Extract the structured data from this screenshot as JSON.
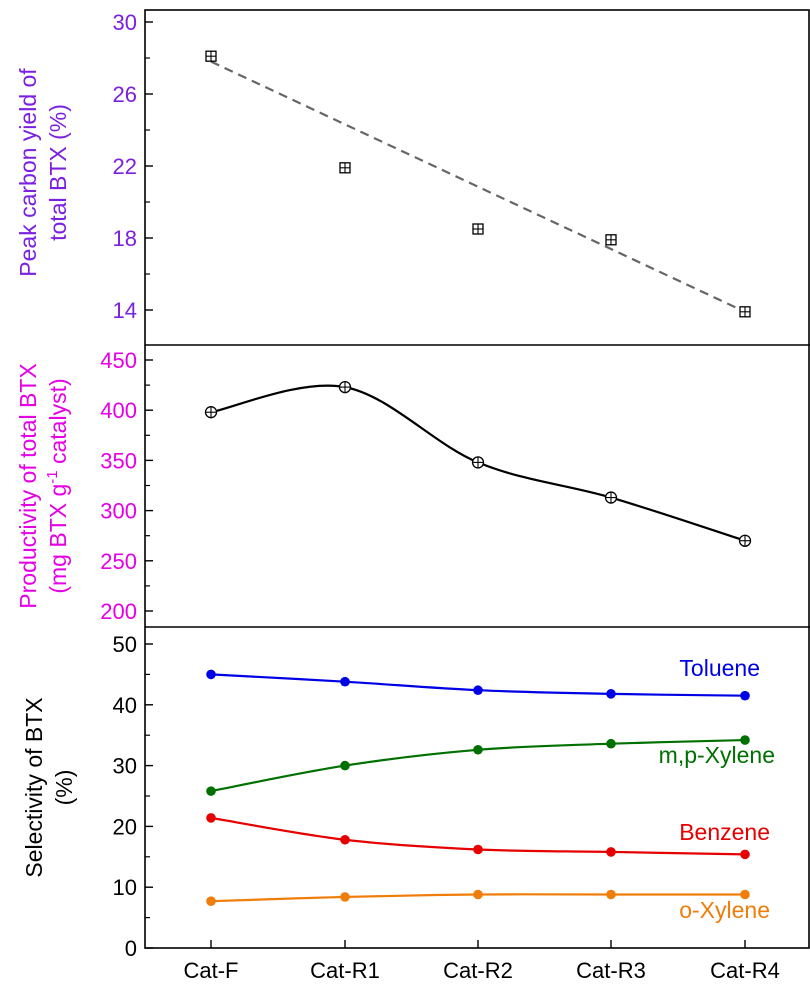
{
  "chart_data": [
    {
      "type": "scatter",
      "panel": "top",
      "ylabel_lines": [
        "Peak carbon yield of",
        "total BTX (%)"
      ],
      "ylabel_color": "#7b1fe0",
      "ylim": [
        12,
        30
      ],
      "yticks": [
        "14",
        "18",
        "22",
        "26",
        "30"
      ],
      "categories": [
        "Cat-F",
        "Cat-R1",
        "Cat-R2",
        "Cat-R3",
        "Cat-R4"
      ],
      "series": [
        {
          "values": [
            28.1,
            21.9,
            18.5,
            17.9,
            13.9
          ],
          "marker": "square-plus",
          "color": "#000000"
        }
      ],
      "trendline": {
        "from": 27.8,
        "to": 13.9,
        "style": "dashed",
        "color": "#666666"
      }
    },
    {
      "type": "line",
      "panel": "middle",
      "ylabel_lines": [
        "Productivity of total BTX",
        "(mg BTX g-1 catalyst)"
      ],
      "ylabel_color": "#e600e6",
      "ylim": [
        180,
        465
      ],
      "yticks": [
        "200",
        "250",
        "300",
        "350",
        "400",
        "450"
      ],
      "categories": [
        "Cat-F",
        "Cat-R1",
        "Cat-R2",
        "Cat-R3",
        "Cat-R4"
      ],
      "series": [
        {
          "values": [
            398,
            423,
            348,
            313,
            270
          ],
          "marker": "circle-plus",
          "color": "#000000"
        }
      ]
    },
    {
      "type": "line",
      "panel": "bottom",
      "ylabel_lines": [
        "Selectivity of BTX",
        "(%)"
      ],
      "ylabel_color": "#000000",
      "ylim": [
        0,
        52
      ],
      "yticks": [
        "0",
        "10",
        "20",
        "30",
        "40",
        "50"
      ],
      "categories": [
        "Cat-F",
        "Cat-R1",
        "Cat-R2",
        "Cat-R3",
        "Cat-R4"
      ],
      "series": [
        {
          "name": "Toluene",
          "values": [
            45.0,
            43.8,
            42.4,
            41.8,
            41.5
          ],
          "color": "#0000e6"
        },
        {
          "name": "m,p-Xylene",
          "values": [
            25.8,
            30.0,
            32.6,
            33.6,
            34.2
          ],
          "color": "#007000"
        },
        {
          "name": "Benzene",
          "values": [
            21.4,
            17.8,
            16.2,
            15.8,
            15.4
          ],
          "color": "#e60000"
        },
        {
          "name": "o-Xylene",
          "values": [
            7.7,
            8.4,
            8.8,
            8.8,
            8.8
          ],
          "color": "#f07d0a"
        }
      ]
    }
  ]
}
